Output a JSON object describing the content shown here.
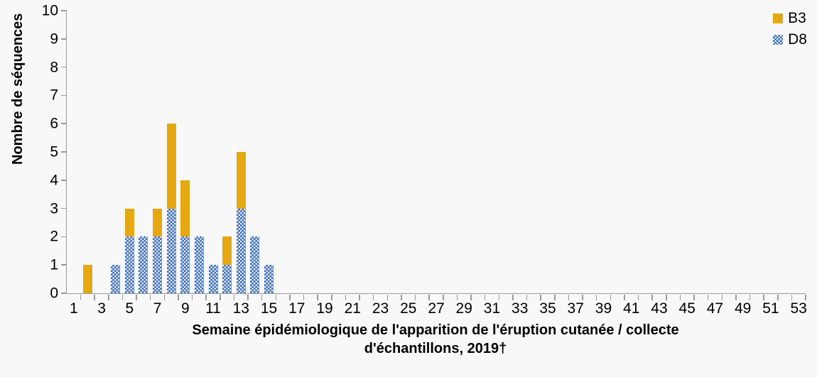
{
  "chart_data": {
    "type": "bar",
    "variant": "stacked-vertical",
    "ylabel": "Nombre de séquences",
    "xlabel_line1": "Semaine épidémiologique de l'apparition de l'éruption cutanée / collecte",
    "xlabel_line2": "d'échantillons, 2019†",
    "ylim": [
      0,
      10
    ],
    "y_ticks": [
      0,
      1,
      2,
      3,
      4,
      5,
      6,
      7,
      8,
      9,
      10
    ],
    "x_weeks_range": [
      1,
      53
    ],
    "x_tick_labels": [
      1,
      3,
      5,
      7,
      9,
      11,
      13,
      15,
      17,
      19,
      21,
      23,
      25,
      27,
      29,
      31,
      33,
      35,
      37,
      39,
      41,
      43,
      45,
      47,
      49,
      51,
      53
    ],
    "grid": false,
    "legend_position": "top-right",
    "stack_order_bottom_to_top": [
      "D8",
      "B3"
    ],
    "series": [
      {
        "name": "B3",
        "color": "#e5a812",
        "pattern": "solid",
        "values": [
          0,
          1,
          0,
          0,
          1,
          0,
          1,
          3,
          2,
          0,
          0,
          1,
          2,
          0,
          0,
          0,
          0,
          0,
          0,
          0,
          0,
          0,
          0,
          0,
          0,
          0,
          0,
          0,
          0,
          0,
          0,
          0,
          0,
          0,
          0,
          0,
          0,
          0,
          0,
          0,
          0,
          0,
          0,
          0,
          0,
          0,
          0,
          0,
          0,
          0,
          0,
          0,
          0
        ]
      },
      {
        "name": "D8",
        "color": "#4472c4",
        "pattern": "dotted-white",
        "values": [
          0,
          0,
          0,
          1,
          2,
          2,
          2,
          3,
          2,
          2,
          1,
          1,
          3,
          2,
          1,
          0,
          0,
          0,
          0,
          0,
          0,
          0,
          0,
          0,
          0,
          0,
          0,
          0,
          0,
          0,
          0,
          0,
          0,
          0,
          0,
          0,
          0,
          0,
          0,
          0,
          0,
          0,
          0,
          0,
          0,
          0,
          0,
          0,
          0,
          0,
          0,
          0,
          0
        ]
      }
    ],
    "axis_color": "#9a9a9a",
    "background_color": "#f8f8f8"
  }
}
